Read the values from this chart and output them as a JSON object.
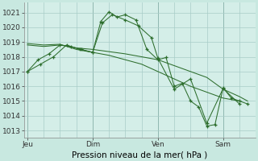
{
  "background_color": "#c8e8e0",
  "plot_bg": "#d4eee8",
  "grid_color": "#a8ccc8",
  "line_color": "#2d6e2d",
  "vline_color": "#5a8a7a",
  "title": "Pression niveau de la mer( hPa )",
  "ylim": [
    1012.5,
    1021.7
  ],
  "yticks": [
    1013,
    1014,
    1015,
    1016,
    1017,
    1018,
    1019,
    1020,
    1021
  ],
  "tick_fontsize": 6.5,
  "xlabel_fontsize": 7.5,
  "day_labels": [
    "Jeu",
    "Dim",
    "Ven",
    "Sam"
  ],
  "day_positions": [
    0,
    2,
    4,
    6
  ],
  "xlim": [
    -0.1,
    7.0
  ],
  "series1": {
    "x": [
      0,
      0.33,
      0.66,
      1.0,
      1.33,
      1.66,
      2.0,
      2.25,
      2.5,
      2.75,
      3.0,
      3.33,
      3.66,
      4.0,
      4.25,
      4.5,
      4.75,
      5.0,
      5.25,
      5.5,
      5.75,
      6.0,
      6.25,
      6.5,
      6.75
    ],
    "y": [
      1017.0,
      1017.8,
      1018.2,
      1018.8,
      1018.7,
      1018.5,
      1018.3,
      1020.4,
      1021.05,
      1020.7,
      1020.85,
      1020.5,
      1018.5,
      1017.8,
      1017.95,
      1016.0,
      1016.2,
      1015.0,
      1014.6,
      1013.3,
      1013.4,
      1015.9,
      1015.2,
      1015.0,
      1014.8
    ]
  },
  "series2": {
    "x": [
      0,
      0.5,
      1.0,
      1.5,
      2.0,
      2.5,
      3.0,
      3.5,
      4.0,
      4.25,
      4.5,
      4.75,
      5.0,
      5.5,
      6.0,
      6.5,
      6.75
    ],
    "y": [
      1018.8,
      1018.7,
      1018.8,
      1018.6,
      1018.5,
      1018.35,
      1018.2,
      1018.0,
      1017.8,
      1017.6,
      1017.4,
      1017.2,
      1017.0,
      1016.6,
      1015.8,
      1015.3,
      1015.0
    ]
  },
  "series3": {
    "x": [
      0,
      0.5,
      1.0,
      1.5,
      2.0,
      2.5,
      3.0,
      3.5,
      4.0,
      4.5,
      5.0,
      5.5,
      6.0,
      6.5
    ],
    "y": [
      1018.9,
      1018.8,
      1018.85,
      1018.5,
      1018.3,
      1018.1,
      1017.8,
      1017.5,
      1017.0,
      1016.5,
      1016.0,
      1015.6,
      1015.2,
      1015.0
    ]
  },
  "series4": {
    "x": [
      0,
      0.4,
      0.8,
      1.2,
      1.6,
      2.0,
      2.3,
      2.6,
      3.0,
      3.4,
      3.8,
      4.0,
      4.5,
      5.0,
      5.5,
      6.0,
      6.5
    ],
    "y": [
      1017.0,
      1017.5,
      1018.0,
      1018.8,
      1018.5,
      1018.3,
      1020.3,
      1020.85,
      1020.5,
      1020.1,
      1019.3,
      1017.9,
      1015.8,
      1016.5,
      1013.5,
      1015.85,
      1014.8
    ]
  }
}
